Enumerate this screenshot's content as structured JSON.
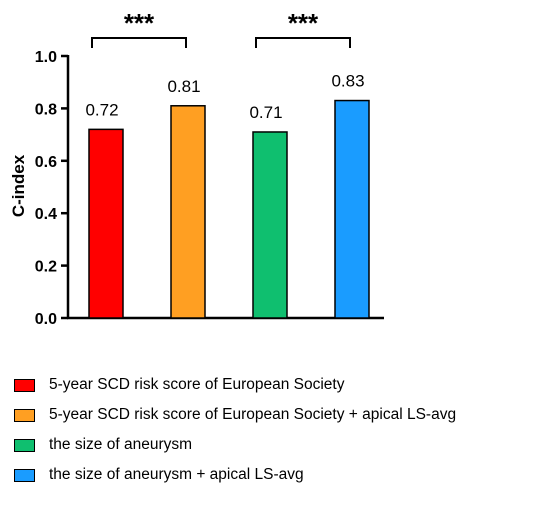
{
  "chart_data": {
    "type": "bar",
    "xlabel": "",
    "ylabel": "C-index",
    "ylim": [
      0,
      1.0
    ],
    "yticks": [
      "0.0",
      "0.2",
      "0.4",
      "0.6",
      "0.8",
      "1.0"
    ],
    "grid": false,
    "legend_position": "bottom",
    "categories": [
      "5-year SCD risk score of European Society",
      "5-year SCD risk score of European Society + apical LS-avg",
      "the size of aneurysm",
      "the size of aneurysm + apical LS-avg"
    ],
    "values": [
      0.72,
      0.81,
      0.71,
      0.83
    ],
    "value_labels": [
      "0.72",
      "0.81",
      "0.71",
      "0.83"
    ],
    "colors": [
      "#ff0000",
      "#ff9f22",
      "#0fbf6f",
      "#1a9cff"
    ],
    "significance": [
      {
        "from": 0,
        "to": 1,
        "label": "***"
      },
      {
        "from": 2,
        "to": 3,
        "label": "***"
      }
    ]
  }
}
